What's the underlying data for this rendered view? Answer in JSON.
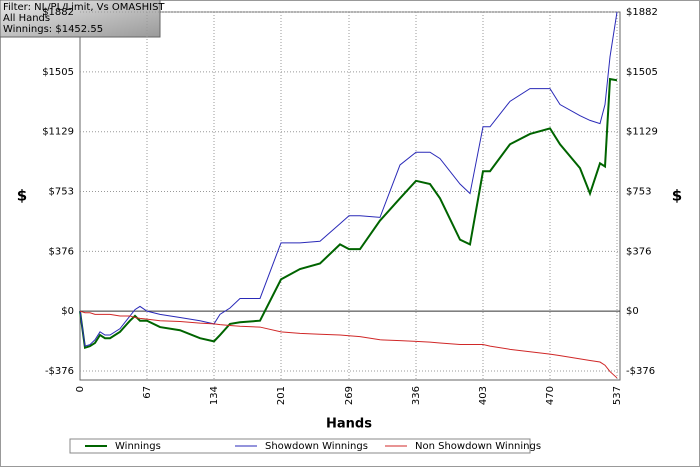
{
  "chart_data": {
    "type": "line",
    "annotations": [
      "Filter: NL/PL/Limit, Vs OMASHIST",
      "All Hands",
      "Winnings: $1452.55"
    ],
    "xlabel": "Hands",
    "ylabel": "$",
    "x": [
      0,
      5,
      10,
      15,
      20,
      25,
      30,
      40,
      50,
      55,
      60,
      67,
      80,
      100,
      120,
      134,
      140,
      150,
      160,
      180,
      201,
      220,
      240,
      260,
      269,
      280,
      300,
      320,
      336,
      350,
      360,
      380,
      390,
      403,
      410,
      430,
      450,
      470,
      480,
      500,
      510,
      520,
      525,
      530,
      537
    ],
    "series": [
      {
        "name": "Winnings",
        "color": "#006400",
        "values": [
          0,
          -230,
          -220,
          -200,
          -150,
          -170,
          -170,
          -130,
          -60,
          -30,
          -60,
          -60,
          -100,
          -120,
          -170,
          -190,
          -150,
          -80,
          -70,
          -60,
          200,
          265,
          300,
          420,
          390,
          390,
          570,
          710,
          820,
          800,
          710,
          450,
          420,
          880,
          880,
          1050,
          1115,
          1150,
          1050,
          900,
          740,
          930,
          910,
          1460,
          1452.55
        ]
      },
      {
        "name": "Showdown Winnings",
        "color": "#2a2ab8",
        "values": [
          0,
          -220,
          -210,
          -180,
          -130,
          -150,
          -150,
          -110,
          -30,
          10,
          30,
          0,
          -20,
          -40,
          -60,
          -80,
          -20,
          20,
          80,
          80,
          430,
          430,
          440,
          550,
          600,
          600,
          590,
          920,
          1000,
          1000,
          960,
          800,
          740,
          1160,
          1160,
          1320,
          1400,
          1400,
          1300,
          1230,
          1200,
          1180,
          1300,
          1600,
          1882
        ]
      },
      {
        "name": "Non Showdown Winnings",
        "color": "#d02828",
        "values": [
          0,
          -10,
          -10,
          -20,
          -20,
          -20,
          -20,
          -30,
          -30,
          -40,
          -45,
          -50,
          -60,
          -65,
          -75,
          -80,
          -85,
          -90,
          -95,
          -100,
          -130,
          -140,
          -145,
          -150,
          -155,
          -160,
          -180,
          -185,
          -190,
          -195,
          -200,
          -210,
          -210,
          -210,
          -220,
          -240,
          -255,
          -270,
          -280,
          -300,
          -310,
          -320,
          -340,
          -380,
          -420
        ]
      }
    ],
    "xlim": [
      0,
      537
    ],
    "xticks": [
      0,
      67,
      134,
      201,
      269,
      336,
      403,
      470,
      537
    ],
    "ylim": [
      -433,
      1882
    ],
    "yticks": [
      {
        "value": -376,
        "label": "-$376"
      },
      {
        "value": 0,
        "label": "$0"
      },
      {
        "value": 376,
        "label": "$376"
      },
      {
        "value": 753,
        "label": "$753"
      },
      {
        "value": 1129,
        "label": "$1129"
      },
      {
        "value": 1505,
        "label": "$1505"
      },
      {
        "value": 1882,
        "label": "$1882"
      }
    ],
    "grid": true
  }
}
